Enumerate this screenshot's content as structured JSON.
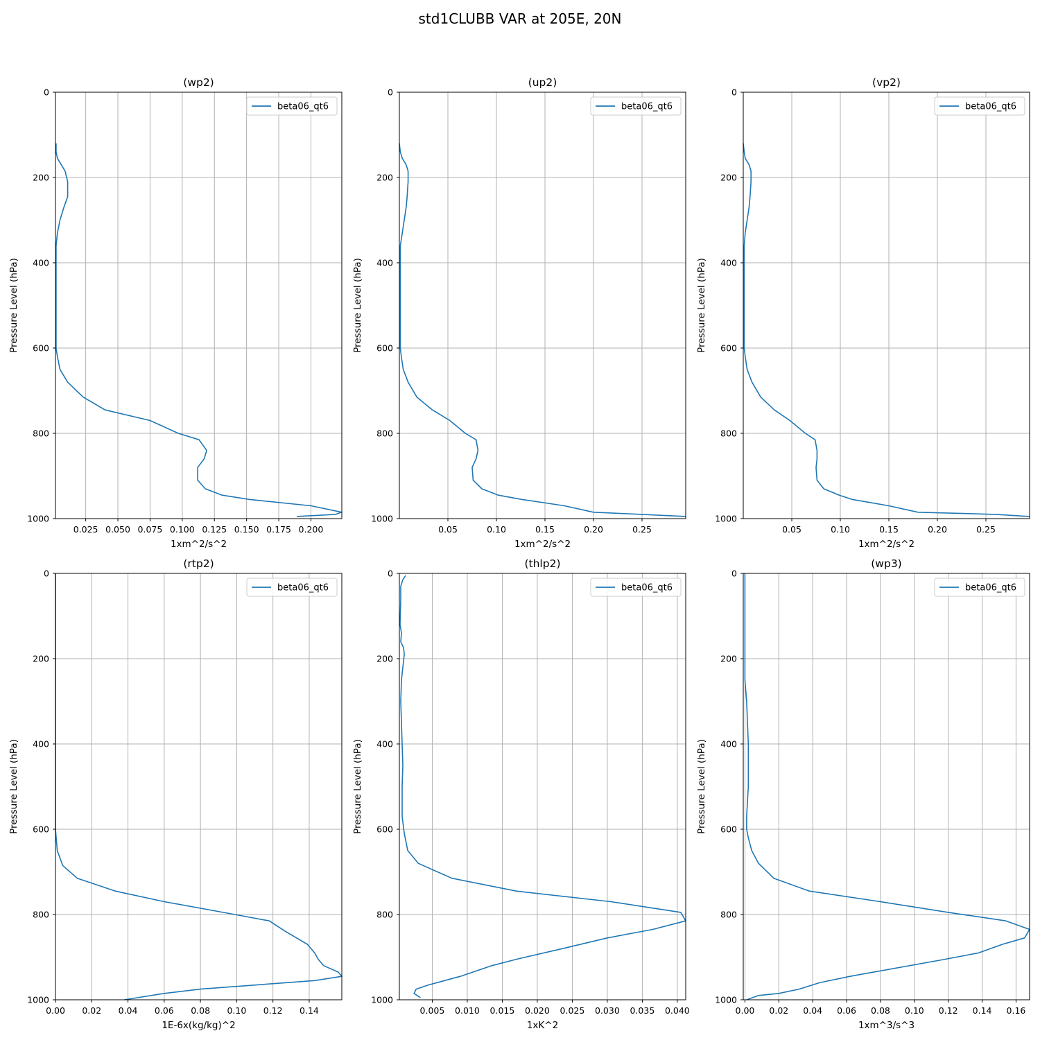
{
  "figure": {
    "title": "std1CLUBB VAR at 205E, 20N"
  },
  "colors": {
    "series": "#1f77b4",
    "grid": "#b0b0b0",
    "axes": "#000000",
    "legend_border": "#cccccc"
  },
  "chart_data": [
    {
      "type": "line",
      "title": "(wp2)",
      "xlabel": "1xm^2/s^2",
      "ylabel": "Pressure Level (hPa)",
      "xlim": [
        0.0015,
        0.224
      ],
      "ylim": [
        1000,
        0
      ],
      "xticks": [
        0.025,
        0.05,
        0.075,
        0.1,
        0.125,
        0.15,
        0.175,
        0.2
      ],
      "xtick_labels": [
        "0.025",
        "0.050",
        "0.075",
        "0.100",
        "0.125",
        "0.150",
        "0.175",
        "0.200"
      ],
      "yticks": [
        0,
        200,
        400,
        600,
        800,
        1000
      ],
      "ytick_labels": [
        "0",
        "200",
        "400",
        "600",
        "800",
        "1000"
      ],
      "grid": true,
      "legend_position": "upper right",
      "series": [
        {
          "name": "beta06_qt6",
          "x": [
            0.002,
            0.002,
            0.003,
            0.006,
            0.009,
            0.011,
            0.011,
            0.008,
            0.005,
            0.003,
            0.002,
            0.002,
            0.002,
            0.002,
            0.002,
            0.002,
            0.003,
            0.005,
            0.011,
            0.023,
            0.04,
            0.075,
            0.097,
            0.113,
            0.119,
            0.117,
            0.112,
            0.112,
            0.118,
            0.131,
            0.152,
            0.2,
            0.224,
            0.219,
            0.189
          ],
          "y": [
            120,
            140,
            155,
            170,
            185,
            210,
            245,
            270,
            300,
            330,
            360,
            400,
            450,
            500,
            550,
            600,
            620,
            650,
            680,
            715,
            745,
            770,
            800,
            815,
            840,
            860,
            880,
            910,
            930,
            945,
            955,
            970,
            985,
            990,
            995
          ]
        }
      ]
    },
    {
      "type": "line",
      "title": "(up2)",
      "xlabel": "1xm^2/s^2",
      "ylabel": "Pressure Level (hPa)",
      "xlim": [
        0.0,
        0.295
      ],
      "ylim": [
        1000,
        0
      ],
      "xticks": [
        0.05,
        0.1,
        0.15,
        0.2,
        0.25
      ],
      "xtick_labels": [
        "0.05",
        "0.10",
        "0.15",
        "0.20",
        "0.25"
      ],
      "yticks": [
        0,
        200,
        400,
        600,
        800,
        1000
      ],
      "ytick_labels": [
        "0",
        "200",
        "400",
        "600",
        "800",
        "1000"
      ],
      "grid": true,
      "legend_position": "upper right",
      "series": [
        {
          "name": "beta06_qt6",
          "x": [
            0.0,
            0.001,
            0.003,
            0.007,
            0.009,
            0.009,
            0.008,
            0.007,
            0.005,
            0.003,
            0.001,
            0.001,
            0.001,
            0.001,
            0.001,
            0.001,
            0.002,
            0.004,
            0.009,
            0.018,
            0.034,
            0.052,
            0.068,
            0.079,
            0.081,
            0.079,
            0.075,
            0.076,
            0.085,
            0.102,
            0.126,
            0.17,
            0.2,
            0.25,
            0.295
          ],
          "y": [
            120,
            140,
            155,
            170,
            185,
            210,
            245,
            270,
            300,
            330,
            360,
            400,
            450,
            500,
            550,
            600,
            620,
            650,
            680,
            715,
            745,
            770,
            800,
            815,
            840,
            860,
            880,
            910,
            930,
            945,
            955,
            970,
            985,
            990,
            995
          ]
        }
      ]
    },
    {
      "type": "line",
      "title": "(vp2)",
      "xlabel": "1xm^2/s^2",
      "ylabel": "Pressure Level (hPa)",
      "xlim": [
        0.0,
        0.295
      ],
      "ylim": [
        1000,
        0
      ],
      "xticks": [
        0.05,
        0.1,
        0.15,
        0.2,
        0.25
      ],
      "xtick_labels": [
        "0.05",
        "0.10",
        "0.15",
        "0.20",
        "0.25"
      ],
      "yticks": [
        0,
        200,
        400,
        600,
        800,
        1000
      ],
      "ytick_labels": [
        "0",
        "200",
        "400",
        "600",
        "800",
        "1000"
      ],
      "grid": true,
      "legend_position": "upper right",
      "series": [
        {
          "name": "beta06_qt6",
          "x": [
            0.0,
            0.001,
            0.002,
            0.006,
            0.008,
            0.008,
            0.007,
            0.006,
            0.004,
            0.002,
            0.001,
            0.001,
            0.001,
            0.001,
            0.001,
            0.001,
            0.002,
            0.004,
            0.009,
            0.018,
            0.032,
            0.048,
            0.064,
            0.074,
            0.076,
            0.076,
            0.075,
            0.076,
            0.083,
            0.099,
            0.112,
            0.15,
            0.18,
            0.26,
            0.295
          ],
          "y": [
            120,
            140,
            155,
            170,
            185,
            210,
            245,
            270,
            300,
            330,
            360,
            400,
            450,
            500,
            550,
            600,
            620,
            650,
            680,
            715,
            745,
            770,
            800,
            815,
            840,
            860,
            880,
            910,
            930,
            945,
            955,
            970,
            985,
            990,
            995
          ]
        }
      ]
    },
    {
      "type": "line",
      "title": "(rtp2)",
      "xlabel": "1E-6x(kg/kg)^2",
      "ylabel": "Pressure Level (hPa)",
      "xlim": [
        0.0,
        0.158
      ],
      "ylim": [
        1000,
        0
      ],
      "xticks": [
        0.0,
        0.02,
        0.04,
        0.06,
        0.08,
        0.1,
        0.12,
        0.14
      ],
      "xtick_labels": [
        "0.00",
        "0.02",
        "0.04",
        "0.06",
        "0.08",
        "0.10",
        "0.12",
        "0.14"
      ],
      "yticks": [
        0,
        200,
        400,
        600,
        800,
        1000
      ],
      "ytick_labels": [
        "0",
        "200",
        "400",
        "600",
        "800",
        "1000"
      ],
      "grid": true,
      "legend_position": "upper right",
      "series": [
        {
          "name": "beta06_qt6",
          "x": [
            0.0,
            0.0,
            0.0,
            0.001,
            0.004,
            0.012,
            0.033,
            0.06,
            0.099,
            0.118,
            0.127,
            0.139,
            0.143,
            0.145,
            0.148,
            0.156,
            0.158,
            0.143,
            0.08,
            0.06,
            0.038
          ],
          "y": [
            0,
            400,
            600,
            650,
            685,
            715,
            745,
            770,
            800,
            815,
            840,
            870,
            890,
            905,
            920,
            935,
            945,
            955,
            975,
            985,
            1000
          ]
        }
      ]
    },
    {
      "type": "line",
      "title": "(thlp2)",
      "xlabel": "1xK^2",
      "ylabel": "Pressure Level (hPa)",
      "xlim": [
        0.0003,
        0.0412
      ],
      "ylim": [
        1000,
        0
      ],
      "xticks": [
        0.005,
        0.01,
        0.015,
        0.02,
        0.025,
        0.03,
        0.035,
        0.04
      ],
      "xtick_labels": [
        "0.005",
        "0.010",
        "0.015",
        "0.020",
        "0.025",
        "0.030",
        "0.035",
        "0.040"
      ],
      "yticks": [
        0,
        200,
        400,
        600,
        800,
        1000
      ],
      "ytick_labels": [
        "0",
        "200",
        "400",
        "600",
        "800",
        "1000"
      ],
      "grid": true,
      "legend_position": "upper right",
      "series": [
        {
          "name": "beta06_qt6",
          "x": [
            0.0012,
            0.0008,
            0.0005,
            0.0005,
            0.0004,
            0.0006,
            0.0005,
            0.0009,
            0.001,
            0.0006,
            0.0005,
            0.0006,
            0.0007,
            0.0008,
            0.0007,
            0.0007,
            0.001,
            0.0015,
            0.003,
            0.0078,
            0.017,
            0.0305,
            0.0405,
            0.0412,
            0.0365,
            0.03,
            0.0236,
            0.017,
            0.0135,
            0.009,
            0.0045,
            0.0027,
            0.0024,
            0.0033
          ],
          "y": [
            5,
            15,
            30,
            60,
            120,
            140,
            160,
            175,
            190,
            250,
            300,
            350,
            400,
            450,
            500,
            570,
            610,
            650,
            680,
            715,
            745,
            770,
            795,
            815,
            835,
            855,
            880,
            905,
            920,
            945,
            965,
            975,
            985,
            995
          ]
        }
      ]
    },
    {
      "type": "line",
      "title": "(wp3)",
      "xlabel": "1xm^3/s^3",
      "ylabel": "Pressure Level (hPa)",
      "xlim": [
        -0.001,
        0.168
      ],
      "ylim": [
        1000,
        0
      ],
      "xticks": [
        0.0,
        0.02,
        0.04,
        0.06,
        0.08,
        0.1,
        0.12,
        0.14,
        0.16
      ],
      "xtick_labels": [
        "0.00",
        "0.02",
        "0.04",
        "0.06",
        "0.08",
        "0.10",
        "0.12",
        "0.14",
        "0.16"
      ],
      "yticks": [
        0,
        200,
        400,
        600,
        800,
        1000
      ],
      "ytick_labels": [
        "0",
        "200",
        "400",
        "600",
        "800",
        "1000"
      ],
      "grid": true,
      "legend_position": "upper right",
      "series": [
        {
          "name": "beta06_qt6",
          "x": [
            0.0,
            0.0,
            0.0,
            0.0,
            0.001,
            0.002,
            0.002,
            0.001,
            0.001,
            0.002,
            0.004,
            0.008,
            0.017,
            0.038,
            0.08,
            0.12,
            0.154,
            0.168,
            0.165,
            0.152,
            0.138,
            0.118,
            0.062,
            0.044,
            0.032,
            0.02,
            0.008,
            0.001
          ],
          "y": [
            0,
            150,
            200,
            250,
            300,
            400,
            500,
            570,
            600,
            620,
            650,
            680,
            715,
            745,
            770,
            795,
            815,
            835,
            855,
            870,
            890,
            905,
            945,
            960,
            975,
            985,
            990,
            1000
          ]
        }
      ]
    }
  ]
}
